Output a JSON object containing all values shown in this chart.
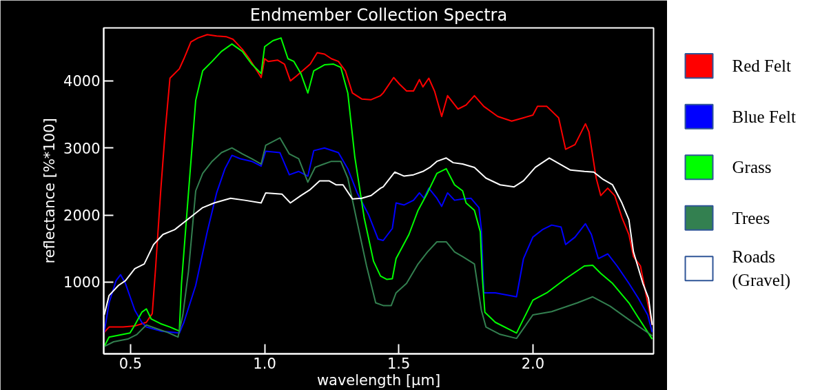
{
  "chart_data": {
    "type": "line",
    "title": "Endmember Collection Spectra",
    "xlabel": "wavelength [µm]",
    "ylabel": "reflectance [%*100]",
    "xlim": [
      0.4,
      2.45
    ],
    "ylim": [
      -70,
      4790
    ],
    "xticks": [
      0.5,
      {
        "value": 1.0,
        "label": "1.0"
      },
      1.5,
      {
        "value": 2.0,
        "label": "2.0"
      }
    ],
    "yticks": [
      1000,
      2000,
      3000,
      4000
    ],
    "grid": false,
    "legend": "right",
    "series": [
      {
        "name": "Red Felt",
        "color": "#ff0000",
        "x": [
          0.402,
          0.42,
          0.472,
          0.516,
          0.559,
          0.581,
          0.594,
          0.612,
          0.629,
          0.647,
          0.682,
          0.699,
          0.725,
          0.751,
          0.786,
          0.821,
          0.856,
          0.882,
          0.917,
          0.943,
          0.987,
          1.0,
          1.013,
          1.048,
          1.074,
          1.096,
          1.118,
          1.144,
          1.17,
          1.196,
          1.223,
          1.249,
          1.275,
          1.301,
          1.327,
          1.362,
          1.397,
          1.432,
          1.442,
          1.481,
          1.503,
          1.529,
          1.555,
          1.577,
          1.59,
          1.612,
          1.634,
          1.66,
          1.682,
          1.721,
          1.751,
          1.782,
          1.817,
          1.869,
          1.921,
          1.965,
          2.0,
          2.017,
          2.052,
          2.096,
          2.122,
          2.157,
          2.196,
          2.209,
          2.236,
          2.253,
          2.279,
          2.305,
          2.332,
          2.358,
          2.375,
          2.401,
          2.428,
          2.445
        ],
        "values": [
          250,
          330,
          330,
          345,
          400,
          530,
          1240,
          2330,
          3240,
          4040,
          4180,
          4330,
          4580,
          4640,
          4690,
          4670,
          4660,
          4620,
          4470,
          4330,
          4050,
          4330,
          4290,
          4310,
          4250,
          4000,
          4070,
          4160,
          4250,
          4420,
          4400,
          4330,
          4290,
          4150,
          3820,
          3730,
          3720,
          3780,
          3820,
          4050,
          3950,
          3850,
          3850,
          4020,
          3910,
          4040,
          3840,
          3470,
          3780,
          3580,
          3640,
          3780,
          3620,
          3470,
          3400,
          3450,
          3490,
          3620,
          3620,
          3450,
          2980,
          3050,
          3360,
          3240,
          2550,
          2290,
          2400,
          2290,
          1960,
          1710,
          1380,
          1240,
          690,
          360
        ]
      },
      {
        "name": "Blue Felt",
        "color": "#0000ff",
        "x": [
          0.402,
          0.42,
          0.446,
          0.463,
          0.481,
          0.516,
          0.542,
          0.559,
          0.612,
          0.682,
          0.699,
          0.743,
          0.786,
          0.821,
          0.852,
          0.878,
          0.908,
          0.952,
          0.987,
          1.004,
          1.057,
          1.092,
          1.127,
          1.161,
          1.183,
          1.223,
          1.275,
          1.31,
          1.345,
          1.388,
          1.423,
          1.442,
          1.476,
          1.49,
          1.52,
          1.555,
          1.577,
          1.594,
          1.612,
          1.642,
          1.66,
          1.682,
          1.708,
          1.738,
          1.769,
          1.799,
          1.808,
          1.817,
          1.86,
          1.939,
          1.965,
          2.0,
          2.035,
          2.07,
          2.105,
          2.122,
          2.157,
          2.196,
          2.218,
          2.244,
          2.279,
          2.314,
          2.358,
          2.393,
          2.428,
          2.445
        ],
        "values": [
          250,
          690,
          1020,
          1110,
          980,
          580,
          400,
          330,
          270,
          240,
          400,
          950,
          1750,
          2330,
          2690,
          2890,
          2840,
          2800,
          2730,
          2950,
          2930,
          2600,
          2650,
          2580,
          2960,
          3000,
          2930,
          2690,
          2330,
          2000,
          1640,
          1620,
          1800,
          2180,
          2150,
          2220,
          2330,
          2250,
          2400,
          2250,
          2130,
          2330,
          2220,
          2240,
          2250,
          2110,
          1780,
          840,
          840,
          780,
          1350,
          1670,
          1780,
          1850,
          1820,
          1560,
          1670,
          1870,
          1710,
          1350,
          1420,
          1240,
          980,
          760,
          510,
          250
        ]
      },
      {
        "name": "Grass",
        "color": "#00ff00",
        "x": [
          0.402,
          0.42,
          0.472,
          0.498,
          0.516,
          0.542,
          0.559,
          0.577,
          0.612,
          0.647,
          0.682,
          0.69,
          0.716,
          0.743,
          0.769,
          0.804,
          0.839,
          0.878,
          0.917,
          0.952,
          0.987,
          1.0,
          1.031,
          1.061,
          1.087,
          1.109,
          1.135,
          1.161,
          1.183,
          1.223,
          1.257,
          1.284,
          1.31,
          1.336,
          1.371,
          1.406,
          1.432,
          1.455,
          1.476,
          1.49,
          1.538,
          1.572,
          1.607,
          1.642,
          1.677,
          1.708,
          1.738,
          1.751,
          1.782,
          1.804,
          1.812,
          1.821,
          1.86,
          1.939,
          2.0,
          2.052,
          2.122,
          2.192,
          2.223,
          2.253,
          2.297,
          2.358,
          2.393,
          2.445
        ],
        "values": [
          40,
          180,
          220,
          240,
          360,
          550,
          600,
          450,
          380,
          330,
          270,
          980,
          2330,
          3710,
          4150,
          4290,
          4440,
          4550,
          4440,
          4250,
          4110,
          4510,
          4600,
          4640,
          4330,
          4290,
          4110,
          3820,
          4150,
          4240,
          4250,
          4200,
          3820,
          2870,
          1960,
          1310,
          1090,
          1040,
          1050,
          1350,
          1710,
          2070,
          2330,
          2620,
          2690,
          2450,
          2360,
          2180,
          2070,
          1750,
          1050,
          550,
          400,
          240,
          730,
          840,
          1050,
          1240,
          1250,
          1130,
          980,
          690,
          470,
          150
        ]
      },
      {
        "name": "Trees",
        "color": "#338050",
        "x": [
          0.402,
          0.437,
          0.49,
          0.524,
          0.559,
          0.594,
          0.638,
          0.677,
          0.695,
          0.716,
          0.743,
          0.769,
          0.804,
          0.839,
          0.878,
          0.917,
          0.952,
          0.987,
          1.004,
          1.057,
          1.092,
          1.127,
          1.161,
          1.188,
          1.214,
          1.249,
          1.284,
          1.31,
          1.345,
          1.38,
          1.414,
          1.442,
          1.472,
          1.49,
          1.529,
          1.572,
          1.607,
          1.642,
          1.677,
          1.708,
          1.738,
          1.782,
          1.808,
          1.825,
          1.878,
          1.939,
          2.0,
          2.07,
          2.166,
          2.223,
          2.288,
          2.358,
          2.445
        ],
        "values": [
          40,
          110,
          150,
          220,
          360,
          310,
          250,
          180,
          510,
          1160,
          2360,
          2620,
          2800,
          2930,
          3000,
          2910,
          2840,
          2760,
          3040,
          3150,
          2910,
          2840,
          2490,
          2710,
          2750,
          2800,
          2800,
          2550,
          1890,
          1240,
          690,
          650,
          650,
          840,
          980,
          1270,
          1450,
          1600,
          1600,
          1450,
          1380,
          1270,
          580,
          330,
          220,
          160,
          510,
          560,
          690,
          780,
          640,
          440,
          200
        ]
      },
      {
        "name": "Roads (Gravel)",
        "color": "#ffffff",
        "x": [
          0.402,
          0.42,
          0.455,
          0.481,
          0.516,
          0.551,
          0.586,
          0.621,
          0.664,
          0.699,
          0.734,
          0.769,
          0.812,
          0.873,
          0.926,
          0.987,
          1.004,
          1.065,
          1.096,
          1.135,
          1.17,
          1.205,
          1.24,
          1.266,
          1.292,
          1.327,
          1.362,
          1.397,
          1.432,
          1.442,
          1.485,
          1.52,
          1.555,
          1.59,
          1.616,
          1.642,
          1.677,
          1.703,
          1.738,
          1.782,
          1.825,
          1.878,
          1.93,
          1.965,
          2.009,
          2.061,
          2.105,
          2.14,
          2.192,
          2.227,
          2.262,
          2.297,
          2.332,
          2.358,
          2.375,
          2.41,
          2.431,
          2.445
        ],
        "values": [
          510,
          800,
          950,
          1020,
          1200,
          1270,
          1560,
          1710,
          1780,
          1890,
          2000,
          2110,
          2180,
          2250,
          2220,
          2180,
          2330,
          2310,
          2180,
          2290,
          2380,
          2510,
          2510,
          2450,
          2450,
          2240,
          2250,
          2290,
          2400,
          2420,
          2640,
          2580,
          2600,
          2650,
          2710,
          2800,
          2850,
          2780,
          2760,
          2710,
          2550,
          2450,
          2420,
          2510,
          2710,
          2850,
          2750,
          2670,
          2650,
          2640,
          2530,
          2450,
          2180,
          1930,
          1450,
          980,
          760,
          360
        ]
      }
    ]
  }
}
